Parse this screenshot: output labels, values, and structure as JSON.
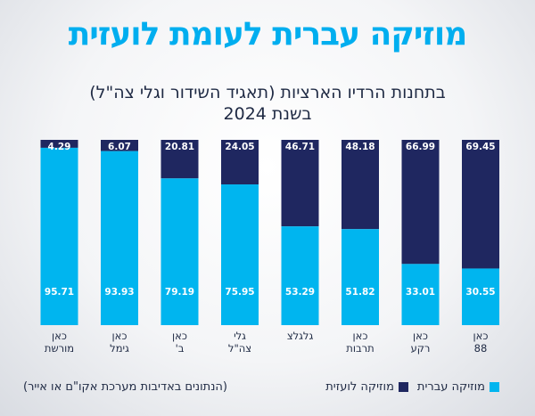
{
  "chart_data": {
    "type": "bar",
    "stacked": true,
    "title": "מוזיקה עברית לעומת לועזית",
    "subtitle_lines": [
      "בתחנות הרדיו הארציות (תאגיד השידור וגלי צה\"ל)",
      "בשנת 2024"
    ],
    "categories": [
      [
        "כאן",
        "88"
      ],
      [
        "כאן",
        "רקע"
      ],
      [
        "כאן",
        "תרבות"
      ],
      [
        "גלגלצ"
      ],
      [
        "גלי",
        "צה\"ל"
      ],
      [
        "כאן",
        "ב'"
      ],
      [
        "כאן",
        "גימל"
      ],
      [
        "כאן",
        "מורשת"
      ]
    ],
    "series": [
      {
        "name": "מוזיקה עברית",
        "color": "#00b5ef",
        "values": [
          30.55,
          33.01,
          51.82,
          53.29,
          75.95,
          79.19,
          93.93,
          95.71
        ]
      },
      {
        "name": "מוזיקה לועזית",
        "color": "#1f2760",
        "values": [
          69.45,
          66.99,
          48.18,
          46.71,
          24.05,
          20.81,
          6.07,
          4.29
        ]
      }
    ],
    "ylim": [
      0,
      100
    ],
    "legend_position": "bottom-right",
    "note": "(הנתונים באדיבות מערכת אקו\"ם או אייר)"
  }
}
